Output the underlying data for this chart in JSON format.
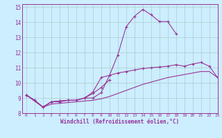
{
  "xlabel": "Windchill (Refroidissement éolien,°C)",
  "xlim": [
    -0.5,
    23
  ],
  "ylim": [
    8,
    15.2
  ],
  "yticks": [
    8,
    9,
    10,
    11,
    12,
    13,
    14,
    15
  ],
  "xticks": [
    0,
    1,
    2,
    3,
    4,
    5,
    6,
    7,
    8,
    9,
    10,
    11,
    12,
    13,
    14,
    15,
    16,
    17,
    18,
    19,
    20,
    21,
    22,
    23
  ],
  "bg_color": "#cceeff",
  "grid_color": "#aacccc",
  "line_color": "#993399",
  "series": [
    {
      "name": "main_peak",
      "x": [
        0,
        1,
        2,
        3,
        4,
        5,
        6,
        7,
        8,
        9,
        10,
        11,
        12,
        13,
        14,
        15,
        16,
        17,
        18
      ],
      "y": [
        9.2,
        8.85,
        8.4,
        8.75,
        8.8,
        8.85,
        8.85,
        9.0,
        9.0,
        9.35,
        10.5,
        11.85,
        13.7,
        14.4,
        14.85,
        14.5,
        14.05,
        14.05,
        13.25
      ],
      "marker": true
    },
    {
      "name": "short_rise",
      "x": [
        0,
        1,
        2,
        3,
        4,
        5,
        6,
        7,
        8,
        9,
        10
      ],
      "y": [
        9.2,
        8.85,
        8.4,
        8.75,
        8.8,
        8.85,
        8.85,
        9.0,
        9.3,
        9.7,
        10.2
      ],
      "marker": true
    },
    {
      "name": "mid_hump",
      "x": [
        0,
        2,
        3,
        4,
        5,
        6,
        7,
        8,
        9,
        10,
        11,
        12,
        13,
        14,
        15,
        16,
        17,
        18,
        19,
        20,
        21,
        22,
        23
      ],
      "y": [
        9.2,
        8.4,
        8.75,
        8.75,
        8.85,
        8.85,
        9.0,
        9.4,
        10.35,
        10.5,
        10.65,
        10.75,
        10.85,
        10.95,
        11.0,
        11.05,
        11.1,
        11.2,
        11.1,
        11.25,
        11.35,
        11.1,
        10.35
      ],
      "marker": true
    },
    {
      "name": "smooth_lower",
      "x": [
        0,
        2,
        3,
        4,
        5,
        6,
        7,
        8,
        9,
        10,
        11,
        12,
        13,
        14,
        15,
        16,
        17,
        18,
        19,
        20,
        21,
        22,
        23
      ],
      "y": [
        9.2,
        8.4,
        8.6,
        8.65,
        8.7,
        8.75,
        8.8,
        8.85,
        8.95,
        9.1,
        9.3,
        9.5,
        9.7,
        9.9,
        10.05,
        10.2,
        10.35,
        10.45,
        10.55,
        10.65,
        10.75,
        10.75,
        10.35
      ],
      "marker": false
    }
  ]
}
